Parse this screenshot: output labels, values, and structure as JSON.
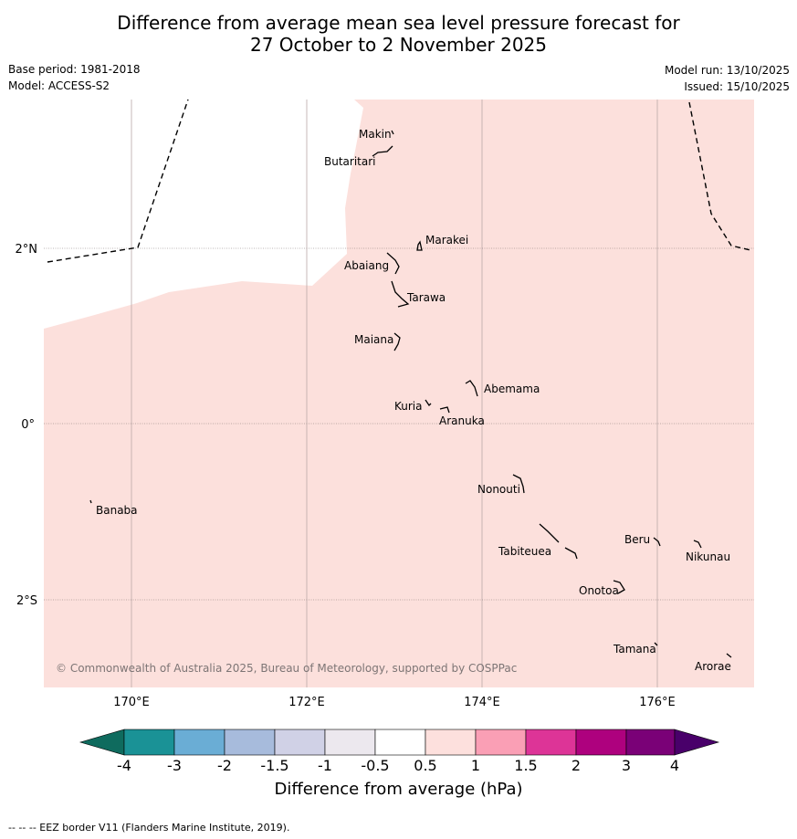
{
  "title": {
    "line1": "Difference from average mean sea level pressure forecast for",
    "line2": "27 October to 2 November 2025"
  },
  "meta": {
    "base_period": "Base period: 1981-2018",
    "model": "Model: ACCESS-S2",
    "model_run": "Model run: 13/10/2025",
    "issued": "Issued: 15/10/2025"
  },
  "map": {
    "lon_labels": [
      "170°E",
      "172°E",
      "174°E",
      "176°E"
    ],
    "lat_labels": [
      "2°N",
      "0°",
      "2°S"
    ],
    "fill_color": "#fce0dc",
    "places": [
      "Makin",
      "Butaritari",
      "Marakei",
      "Abaiang",
      "Tarawa",
      "Maiana",
      "Abemama",
      "Kuria",
      "Aranuka",
      "Nonouti",
      "Banaba",
      "Beru",
      "Nikunau",
      "Tabiteuea",
      "Onotoa",
      "Tamana",
      "Arorae"
    ],
    "copyright": "© Commonwealth of Australia 2025, Bureau of Meteorology, supported by COSPPac"
  },
  "colorbar": {
    "labels": [
      "-4",
      "-3",
      "-2",
      "-1.5",
      "-1",
      "-0.5",
      "0.5",
      "1",
      "1.5",
      "2",
      "3",
      "4"
    ],
    "colors": [
      "#1a9296",
      "#6aadd5",
      "#a7bbdc",
      "#d0d1e6",
      "#ece8ee",
      "#ffffff",
      "#fde0dd",
      "#fa9fb5",
      "#dd3497",
      "#ae017e",
      "#7a0177"
    ],
    "under_color": "#0f6b5e",
    "over_color": "#49006a",
    "title": "Difference from average (hPa)"
  },
  "footnote": "--  --  -- EEZ border V11 (Flanders Marine Institute, 2019)."
}
